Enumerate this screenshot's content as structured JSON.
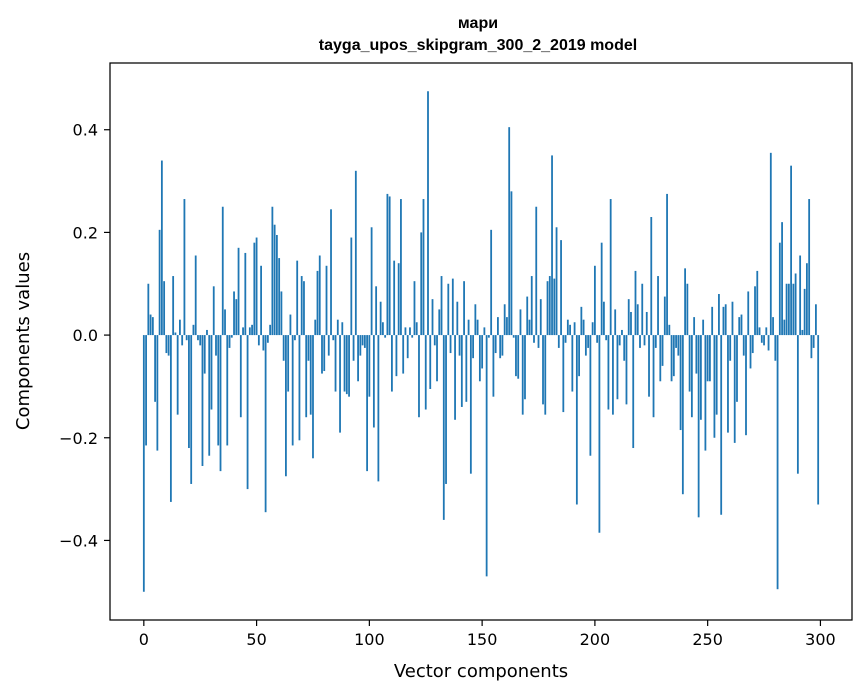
{
  "chart_data": {
    "type": "bar",
    "title": "мари",
    "subtitle": "tayga_upos_skipgram_300_2_2019 model",
    "xlabel": "Vector components",
    "ylabel": "Components values",
    "xlim": [
      -15,
      314
    ],
    "ylim": [
      -0.555,
      0.53
    ],
    "xticks": [
      0,
      50,
      100,
      150,
      200,
      250,
      300
    ],
    "xtick_labels": [
      "0",
      "50",
      "100",
      "150",
      "200",
      "250",
      "300"
    ],
    "yticks": [
      -0.4,
      -0.2,
      0.0,
      0.2,
      0.4
    ],
    "ytick_labels": [
      "−0.4",
      "−0.2",
      "0.0",
      "0.2",
      "0.4"
    ],
    "bar_color": "#1f77b4",
    "x_start": 0,
    "values": [
      -0.5,
      -0.215,
      0.1,
      0.04,
      0.035,
      -0.13,
      -0.225,
      0.205,
      0.34,
      0.105,
      -0.035,
      -0.04,
      -0.325,
      0.115,
      0.005,
      -0.155,
      0.03,
      -0.02,
      0.265,
      -0.01,
      -0.22,
      -0.29,
      0.02,
      0.155,
      -0.01,
      -0.02,
      -0.255,
      -0.075,
      0.01,
      -0.235,
      -0.145,
      0.095,
      -0.04,
      -0.215,
      -0.265,
      0.25,
      0.05,
      -0.215,
      -0.025,
      -0.005,
      0.085,
      0.07,
      0.17,
      -0.16,
      0.015,
      0.16,
      -0.3,
      0.015,
      0.02,
      0.18,
      0.19,
      -0.02,
      0.135,
      -0.03,
      -0.345,
      -0.015,
      0.02,
      0.25,
      0.215,
      0.195,
      0.15,
      0.085,
      -0.05,
      -0.275,
      -0.11,
      0.04,
      -0.215,
      -0.01,
      0.145,
      -0.205,
      0.115,
      0.105,
      -0.16,
      -0.05,
      -0.155,
      -0.24,
      0.03,
      0.125,
      0.155,
      -0.075,
      -0.07,
      0.135,
      -0.04,
      0.245,
      -0.01,
      -0.11,
      0.03,
      -0.19,
      0.025,
      -0.11,
      -0.115,
      -0.12,
      0.19,
      -0.05,
      0.32,
      -0.09,
      -0.04,
      -0.02,
      -0.025,
      -0.265,
      -0.12,
      0.21,
      -0.18,
      0.095,
      -0.285,
      0.065,
      0.025,
      -0.005,
      0.275,
      0.27,
      -0.11,
      0.145,
      -0.08,
      0.14,
      0.265,
      -0.075,
      0.015,
      -0.045,
      0.015,
      -0.005,
      0.105,
      0.025,
      -0.16,
      0.2,
      0.265,
      -0.145,
      0.475,
      -0.105,
      0.07,
      -0.02,
      -0.09,
      0.05,
      0.115,
      -0.36,
      -0.29,
      0.1,
      -0.035,
      0.11,
      -0.165,
      0.065,
      -0.04,
      -0.14,
      0.105,
      -0.13,
      0.03,
      -0.27,
      -0.045,
      0.06,
      0.03,
      -0.09,
      -0.065,
      0.015,
      -0.47,
      -0.005,
      0.205,
      -0.12,
      -0.035,
      0.035,
      -0.045,
      -0.04,
      0.06,
      0.035,
      0.405,
      0.28,
      -0.005,
      -0.08,
      -0.085,
      0.05,
      -0.155,
      -0.125,
      0.075,
      0.03,
      0.115,
      -0.015,
      0.25,
      -0.025,
      0.07,
      -0.135,
      -0.155,
      0.105,
      0.115,
      0.35,
      0.11,
      0.21,
      -0.025,
      0.185,
      -0.15,
      -0.015,
      0.03,
      0.02,
      -0.11,
      0.025,
      -0.33,
      -0.08,
      0.055,
      0.03,
      -0.04,
      -0.025,
      -0.235,
      0.025,
      0.135,
      -0.015,
      -0.385,
      0.18,
      0.065,
      -0.01,
      -0.145,
      0.265,
      -0.155,
      0.05,
      -0.125,
      -0.02,
      0.01,
      -0.05,
      -0.135,
      0.07,
      0.045,
      -0.22,
      0.125,
      0.06,
      -0.025,
      0.1,
      -0.02,
      0.045,
      -0.12,
      0.23,
      -0.16,
      -0.025,
      0.115,
      -0.09,
      -0.06,
      0.075,
      0.275,
      0.02,
      -0.09,
      -0.08,
      -0.025,
      -0.04,
      -0.185,
      -0.31,
      0.13,
      0.1,
      -0.11,
      -0.16,
      0.035,
      -0.075,
      -0.355,
      -0.165,
      0.03,
      -0.225,
      -0.09,
      -0.09,
      0.055,
      -0.2,
      -0.155,
      0.08,
      -0.35,
      0.055,
      0.06,
      -0.19,
      -0.05,
      0.065,
      -0.21,
      -0.13,
      0.035,
      0.04,
      -0.04,
      -0.195,
      0.085,
      -0.065,
      -0.035,
      0.095,
      0.125,
      0.015,
      -0.015,
      -0.02,
      0.015,
      -0.03,
      0.355,
      0.035,
      -0.05,
      -0.495,
      0.18,
      0.22,
      0.03,
      0.1,
      0.1,
      0.33,
      0.1,
      0.12,
      -0.27,
      0.155,
      0.01,
      0.09,
      0.14,
      0.265,
      -0.045,
      -0.025,
      0.06,
      -0.33
    ]
  }
}
